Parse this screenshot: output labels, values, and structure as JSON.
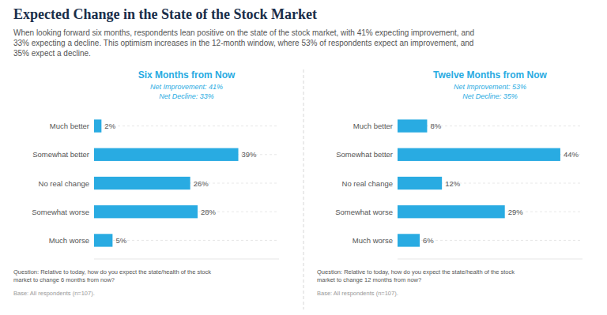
{
  "title": "Expected Change in the State of the Stock Market",
  "subtitle": "When looking forward six months, respondents lean positive on the state of the stock market, with 41% expecting improvement, and\n33% expecting a decline. This optimism increases in the 12-month window, where 53% of respondents expect an improvement, and\n35% expect a decline.",
  "chart_data": [
    {
      "type": "bar",
      "orientation": "horizontal",
      "title": "Six Months from Now",
      "annotations": [
        "Net Improvement: 41%",
        "Net Decline: 33%",
        "Question: Relative to today, how do you expect the state/health of the stock\nmarket to change 6 months from now?",
        "Base: All respondents (n=107)."
      ],
      "categories": [
        "Much better",
        "Somewhat better",
        "No real change",
        "Somewhat worse",
        "Much worse"
      ],
      "values": [
        2,
        39,
        26,
        28,
        5
      ],
      "value_labels": [
        "2%",
        "39%",
        "26%",
        "28%",
        "5%"
      ],
      "data_labels": true,
      "color": "#29abe2",
      "xlim": [
        0,
        50
      ],
      "tick_labels": "y",
      "grid": true
    },
    {
      "type": "bar",
      "orientation": "horizontal",
      "title": "Twelve Months from Now",
      "annotations": [
        "Net Improvement: 53%",
        "Net Decline: 35%",
        "Question: Relative to today, how do you expect the state/health of the stock\nmarket to change 12 months from now?",
        "Base: All respondents (n=107)."
      ],
      "categories": [
        "Much better",
        "Somewhat better",
        "No real change",
        "Somewhat worse",
        "Much worse"
      ],
      "values": [
        8,
        44,
        12,
        29,
        6
      ],
      "value_labels": [
        "8%",
        "44%",
        "12%",
        "29%",
        "6%"
      ],
      "data_labels": true,
      "color": "#29abe2",
      "xlim": [
        0,
        50
      ],
      "tick_labels": "y",
      "grid": true
    }
  ]
}
